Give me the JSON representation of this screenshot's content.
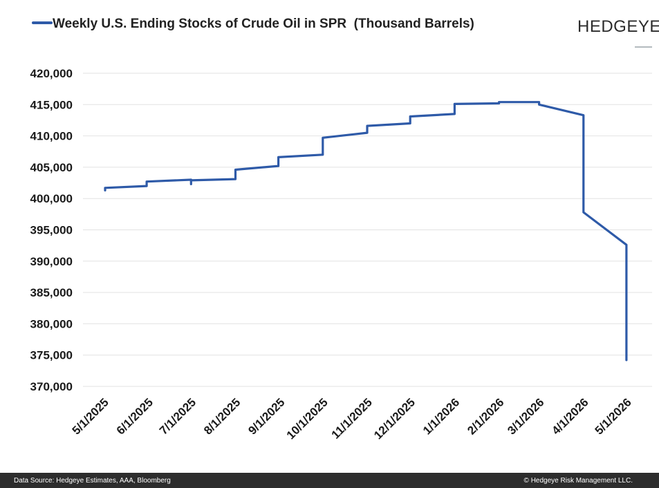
{
  "brand": "HEDGEYE",
  "footer": {
    "source": "Data Source: Hedgeye Estimates, AAA, Bloomberg",
    "copyright": "© Hedgeye Risk Management LLC."
  },
  "colors": {
    "series": "#2e5aa8",
    "grid": "#e2e2e2",
    "footer_bg": "#2d2d2d"
  },
  "chart_data": {
    "type": "line",
    "title": "",
    "xlabel": "",
    "ylabel": "",
    "grid": true,
    "legend": "top-left",
    "ylim": [
      370000,
      420000
    ],
    "yticks": [
      "370,000",
      "375,000",
      "380,000",
      "385,000",
      "390,000",
      "395,000",
      "400,000",
      "405,000",
      "410,000",
      "415,000",
      "420,000"
    ],
    "ytick_values": [
      370000,
      375000,
      380000,
      385000,
      390000,
      395000,
      400000,
      405000,
      410000,
      415000,
      420000
    ],
    "xlim": [
      "2025-05-01",
      "2026-05-01"
    ],
    "xticks": [
      "5/1/2025",
      "6/1/2025",
      "7/1/2025",
      "8/1/2025",
      "9/1/2025",
      "10/1/2025",
      "11/1/2025",
      "12/1/2025",
      "1/1/2026",
      "2/1/2026",
      "3/1/2026",
      "4/1/2026",
      "5/1/2026"
    ],
    "xtick_dates": [
      "2025-05-01",
      "2025-06-01",
      "2025-07-01",
      "2025-08-01",
      "2025-09-01",
      "2025-10-01",
      "2025-11-01",
      "2025-12-01",
      "2026-01-01",
      "2026-02-01",
      "2026-03-01",
      "2026-04-01",
      "2026-05-01"
    ],
    "series": [
      {
        "name": "Weekly U.S. Ending Stocks of Crude Oil in SPR  (Thousand Barrels)",
        "points": [
          [
            "2025-05-01",
            401300
          ],
          [
            "2025-05-01",
            401700
          ],
          [
            "2025-05-30",
            402000
          ],
          [
            "2025-05-30",
            402700
          ],
          [
            "2025-06-30",
            403000
          ],
          [
            "2025-06-30",
            402300
          ],
          [
            "2025-06-30",
            402900
          ],
          [
            "2025-07-31",
            403100
          ],
          [
            "2025-07-31",
            404600
          ],
          [
            "2025-08-30",
            405200
          ],
          [
            "2025-08-30",
            406600
          ],
          [
            "2025-09-30",
            407000
          ],
          [
            "2025-09-30",
            409700
          ],
          [
            "2025-10-31",
            410500
          ],
          [
            "2025-10-31",
            411600
          ],
          [
            "2025-11-30",
            412000
          ],
          [
            "2025-11-30",
            413100
          ],
          [
            "2025-12-31",
            413500
          ],
          [
            "2025-12-31",
            415100
          ],
          [
            "2026-01-31",
            415200
          ],
          [
            "2026-01-31",
            415400
          ],
          [
            "2026-02-28",
            415400
          ],
          [
            "2026-02-28",
            415000
          ],
          [
            "2026-03-31",
            413300
          ],
          [
            "2026-03-31",
            397800
          ],
          [
            "2026-04-30",
            392600
          ],
          [
            "2026-04-30",
            374200
          ]
        ]
      }
    ]
  }
}
